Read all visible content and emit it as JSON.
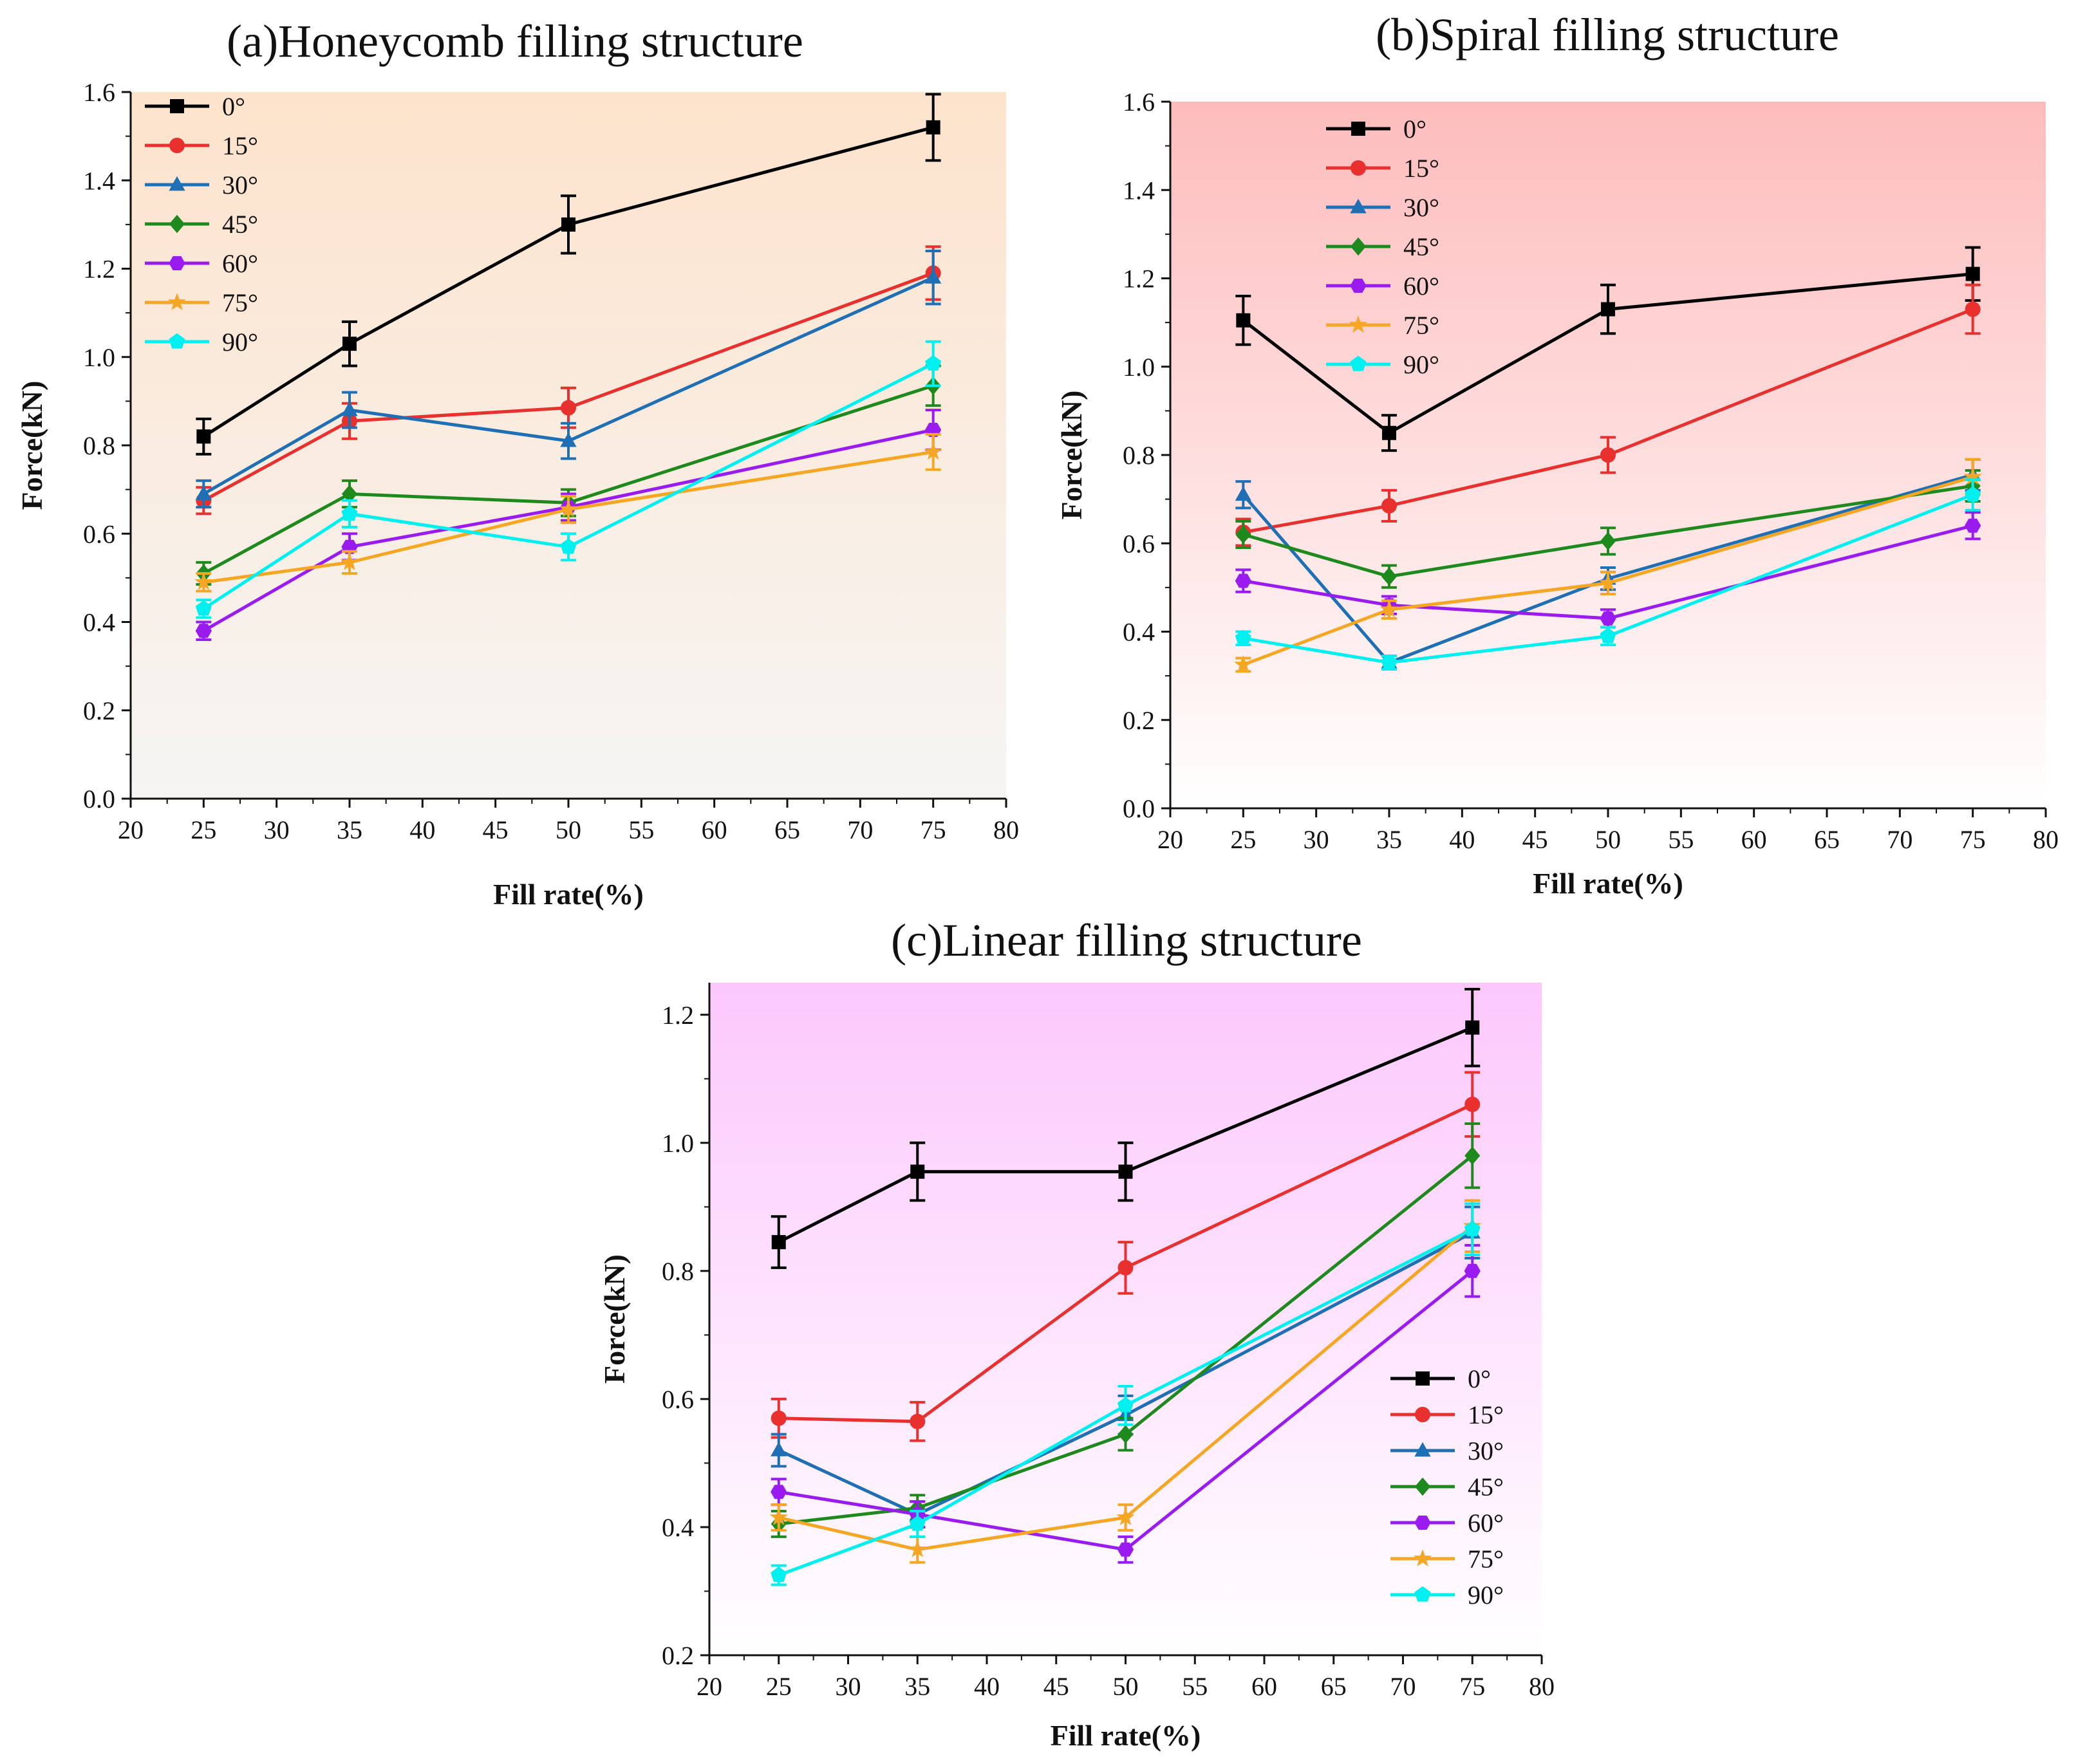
{
  "colors": {
    "0": "#000000",
    "15": "#e8302f",
    "30": "#1f6fb4",
    "45": "#1e8a1e",
    "60": "#9a1bf0",
    "75": "#f5a623",
    "90": "#00f0f0"
  },
  "chart_data": [
    {
      "type": "line",
      "title": "(a)Honeycomb filling structure",
      "xlabel": "Fill rate(%)",
      "ylabel": "Force(kN)",
      "xlim": [
        20,
        80
      ],
      "ylim": [
        0.0,
        1.6
      ],
      "xticks": [
        "20",
        "25",
        "30",
        "35",
        "40",
        "45",
        "50",
        "55",
        "60",
        "65",
        "70",
        "75",
        "80"
      ],
      "yticks": [
        "0.0",
        "0.2",
        "0.4",
        "0.6",
        "0.8",
        "1.0",
        "1.2",
        "1.4",
        "1.6"
      ],
      "background": {
        "top": "#fde3cc",
        "bottom": "#f6f5f4"
      },
      "legend_position": "top-left",
      "x": [
        25,
        35,
        50,
        75
      ],
      "series": [
        {
          "name": "0°",
          "key": "0",
          "marker": "square",
          "values": [
            0.82,
            1.03,
            1.3,
            1.52
          ],
          "errors": [
            0.04,
            0.05,
            0.065,
            0.075
          ]
        },
        {
          "name": "15°",
          "key": "15",
          "marker": "circle",
          "values": [
            0.675,
            0.855,
            0.885,
            1.19
          ],
          "errors": [
            0.03,
            0.04,
            0.045,
            0.06
          ]
        },
        {
          "name": "30°",
          "key": "30",
          "marker": "triangle",
          "values": [
            0.69,
            0.88,
            0.81,
            1.18
          ],
          "errors": [
            0.03,
            0.04,
            0.04,
            0.06
          ]
        },
        {
          "name": "45°",
          "key": "45",
          "marker": "diamond",
          "values": [
            0.51,
            0.69,
            0.67,
            0.935
          ],
          "errors": [
            0.025,
            0.03,
            0.03,
            0.045
          ]
        },
        {
          "name": "60°",
          "key": "60",
          "marker": "hexagon",
          "values": [
            0.38,
            0.57,
            0.66,
            0.835
          ],
          "errors": [
            0.02,
            0.03,
            0.03,
            0.045
          ]
        },
        {
          "name": "75°",
          "key": "75",
          "marker": "star",
          "values": [
            0.49,
            0.535,
            0.655,
            0.785
          ],
          "errors": [
            0.02,
            0.025,
            0.03,
            0.04
          ]
        },
        {
          "name": "90°",
          "key": "90",
          "marker": "pentagon",
          "values": [
            0.43,
            0.645,
            0.57,
            0.985
          ],
          "errors": [
            0.02,
            0.03,
            0.03,
            0.05
          ]
        }
      ]
    },
    {
      "type": "line",
      "title": "(b)Spiral filling structure",
      "xlabel": "Fill rate(%)",
      "ylabel": "Force(kN)",
      "xlim": [
        20,
        80
      ],
      "ylim": [
        0.0,
        1.6
      ],
      "xticks": [
        "20",
        "25",
        "30",
        "35",
        "40",
        "45",
        "50",
        "55",
        "60",
        "65",
        "70",
        "75",
        "80"
      ],
      "yticks": [
        "0.0",
        "0.2",
        "0.4",
        "0.6",
        "0.8",
        "1.0",
        "1.2",
        "1.4",
        "1.6"
      ],
      "background": {
        "top": "#fdbcbc",
        "bottom": "#ffffff"
      },
      "legend_position": "top-left",
      "x": [
        25,
        35,
        50,
        75
      ],
      "series": [
        {
          "name": "0°",
          "key": "0",
          "marker": "square",
          "values": [
            1.105,
            0.85,
            1.13,
            1.21
          ],
          "errors": [
            0.055,
            0.04,
            0.055,
            0.06
          ]
        },
        {
          "name": "15°",
          "key": "15",
          "marker": "circle",
          "values": [
            0.625,
            0.685,
            0.8,
            1.13
          ],
          "errors": [
            0.03,
            0.035,
            0.04,
            0.055
          ]
        },
        {
          "name": "30°",
          "key": "30",
          "marker": "triangle",
          "values": [
            0.71,
            0.33,
            0.52,
            0.755
          ],
          "errors": [
            0.03,
            0.015,
            0.025,
            0.035
          ]
        },
        {
          "name": "45°",
          "key": "45",
          "marker": "diamond",
          "values": [
            0.62,
            0.525,
            0.605,
            0.73
          ],
          "errors": [
            0.03,
            0.025,
            0.03,
            0.035
          ]
        },
        {
          "name": "60°",
          "key": "60",
          "marker": "hexagon",
          "values": [
            0.515,
            0.46,
            0.43,
            0.64
          ],
          "errors": [
            0.025,
            0.02,
            0.02,
            0.03
          ]
        },
        {
          "name": "75°",
          "key": "75",
          "marker": "star",
          "values": [
            0.325,
            0.45,
            0.51,
            0.75
          ],
          "errors": [
            0.015,
            0.02,
            0.025,
            0.04
          ]
        },
        {
          "name": "90°",
          "key": "90",
          "marker": "pentagon",
          "values": [
            0.385,
            0.33,
            0.39,
            0.71
          ],
          "errors": [
            0.015,
            0.015,
            0.02,
            0.035
          ]
        }
      ]
    },
    {
      "type": "line",
      "title": "(c)Linear filling structure",
      "xlabel": "Fill rate(%)",
      "ylabel": "Force(kN)",
      "xlim": [
        20,
        80
      ],
      "ylim": [
        0.2,
        1.25
      ],
      "xticks": [
        "20",
        "25",
        "30",
        "35",
        "40",
        "45",
        "50",
        "55",
        "60",
        "65",
        "70",
        "75",
        "80"
      ],
      "yticks": [
        "0.2",
        "0.4",
        "0.6",
        "0.8",
        "1.0",
        "1.2"
      ],
      "background": {
        "top": "#fcc8fc",
        "bottom": "#ffffff"
      },
      "legend_position": "bottom-right",
      "x": [
        25,
        35,
        50,
        75
      ],
      "series": [
        {
          "name": "0°",
          "key": "0",
          "marker": "square",
          "values": [
            0.845,
            0.955,
            0.955,
            1.18
          ],
          "errors": [
            0.04,
            0.045,
            0.045,
            0.06
          ]
        },
        {
          "name": "15°",
          "key": "15",
          "marker": "circle",
          "values": [
            0.57,
            0.565,
            0.805,
            1.06
          ],
          "errors": [
            0.03,
            0.03,
            0.04,
            0.05
          ]
        },
        {
          "name": "30°",
          "key": "30",
          "marker": "triangle",
          "values": [
            0.52,
            0.42,
            0.575,
            0.86
          ],
          "errors": [
            0.025,
            0.02,
            0.03,
            0.04
          ]
        },
        {
          "name": "45°",
          "key": "45",
          "marker": "diamond",
          "values": [
            0.405,
            0.43,
            0.545,
            0.98
          ],
          "errors": [
            0.02,
            0.02,
            0.025,
            0.05
          ]
        },
        {
          "name": "60°",
          "key": "60",
          "marker": "hexagon",
          "values": [
            0.455,
            0.42,
            0.365,
            0.8
          ],
          "errors": [
            0.02,
            0.02,
            0.02,
            0.04
          ]
        },
        {
          "name": "75°",
          "key": "75",
          "marker": "star",
          "values": [
            0.415,
            0.365,
            0.415,
            0.87
          ],
          "errors": [
            0.02,
            0.02,
            0.02,
            0.04
          ]
        },
        {
          "name": "90°",
          "key": "90",
          "marker": "pentagon",
          "values": [
            0.325,
            0.405,
            0.59,
            0.865
          ],
          "errors": [
            0.015,
            0.02,
            0.03,
            0.04
          ]
        }
      ]
    }
  ]
}
